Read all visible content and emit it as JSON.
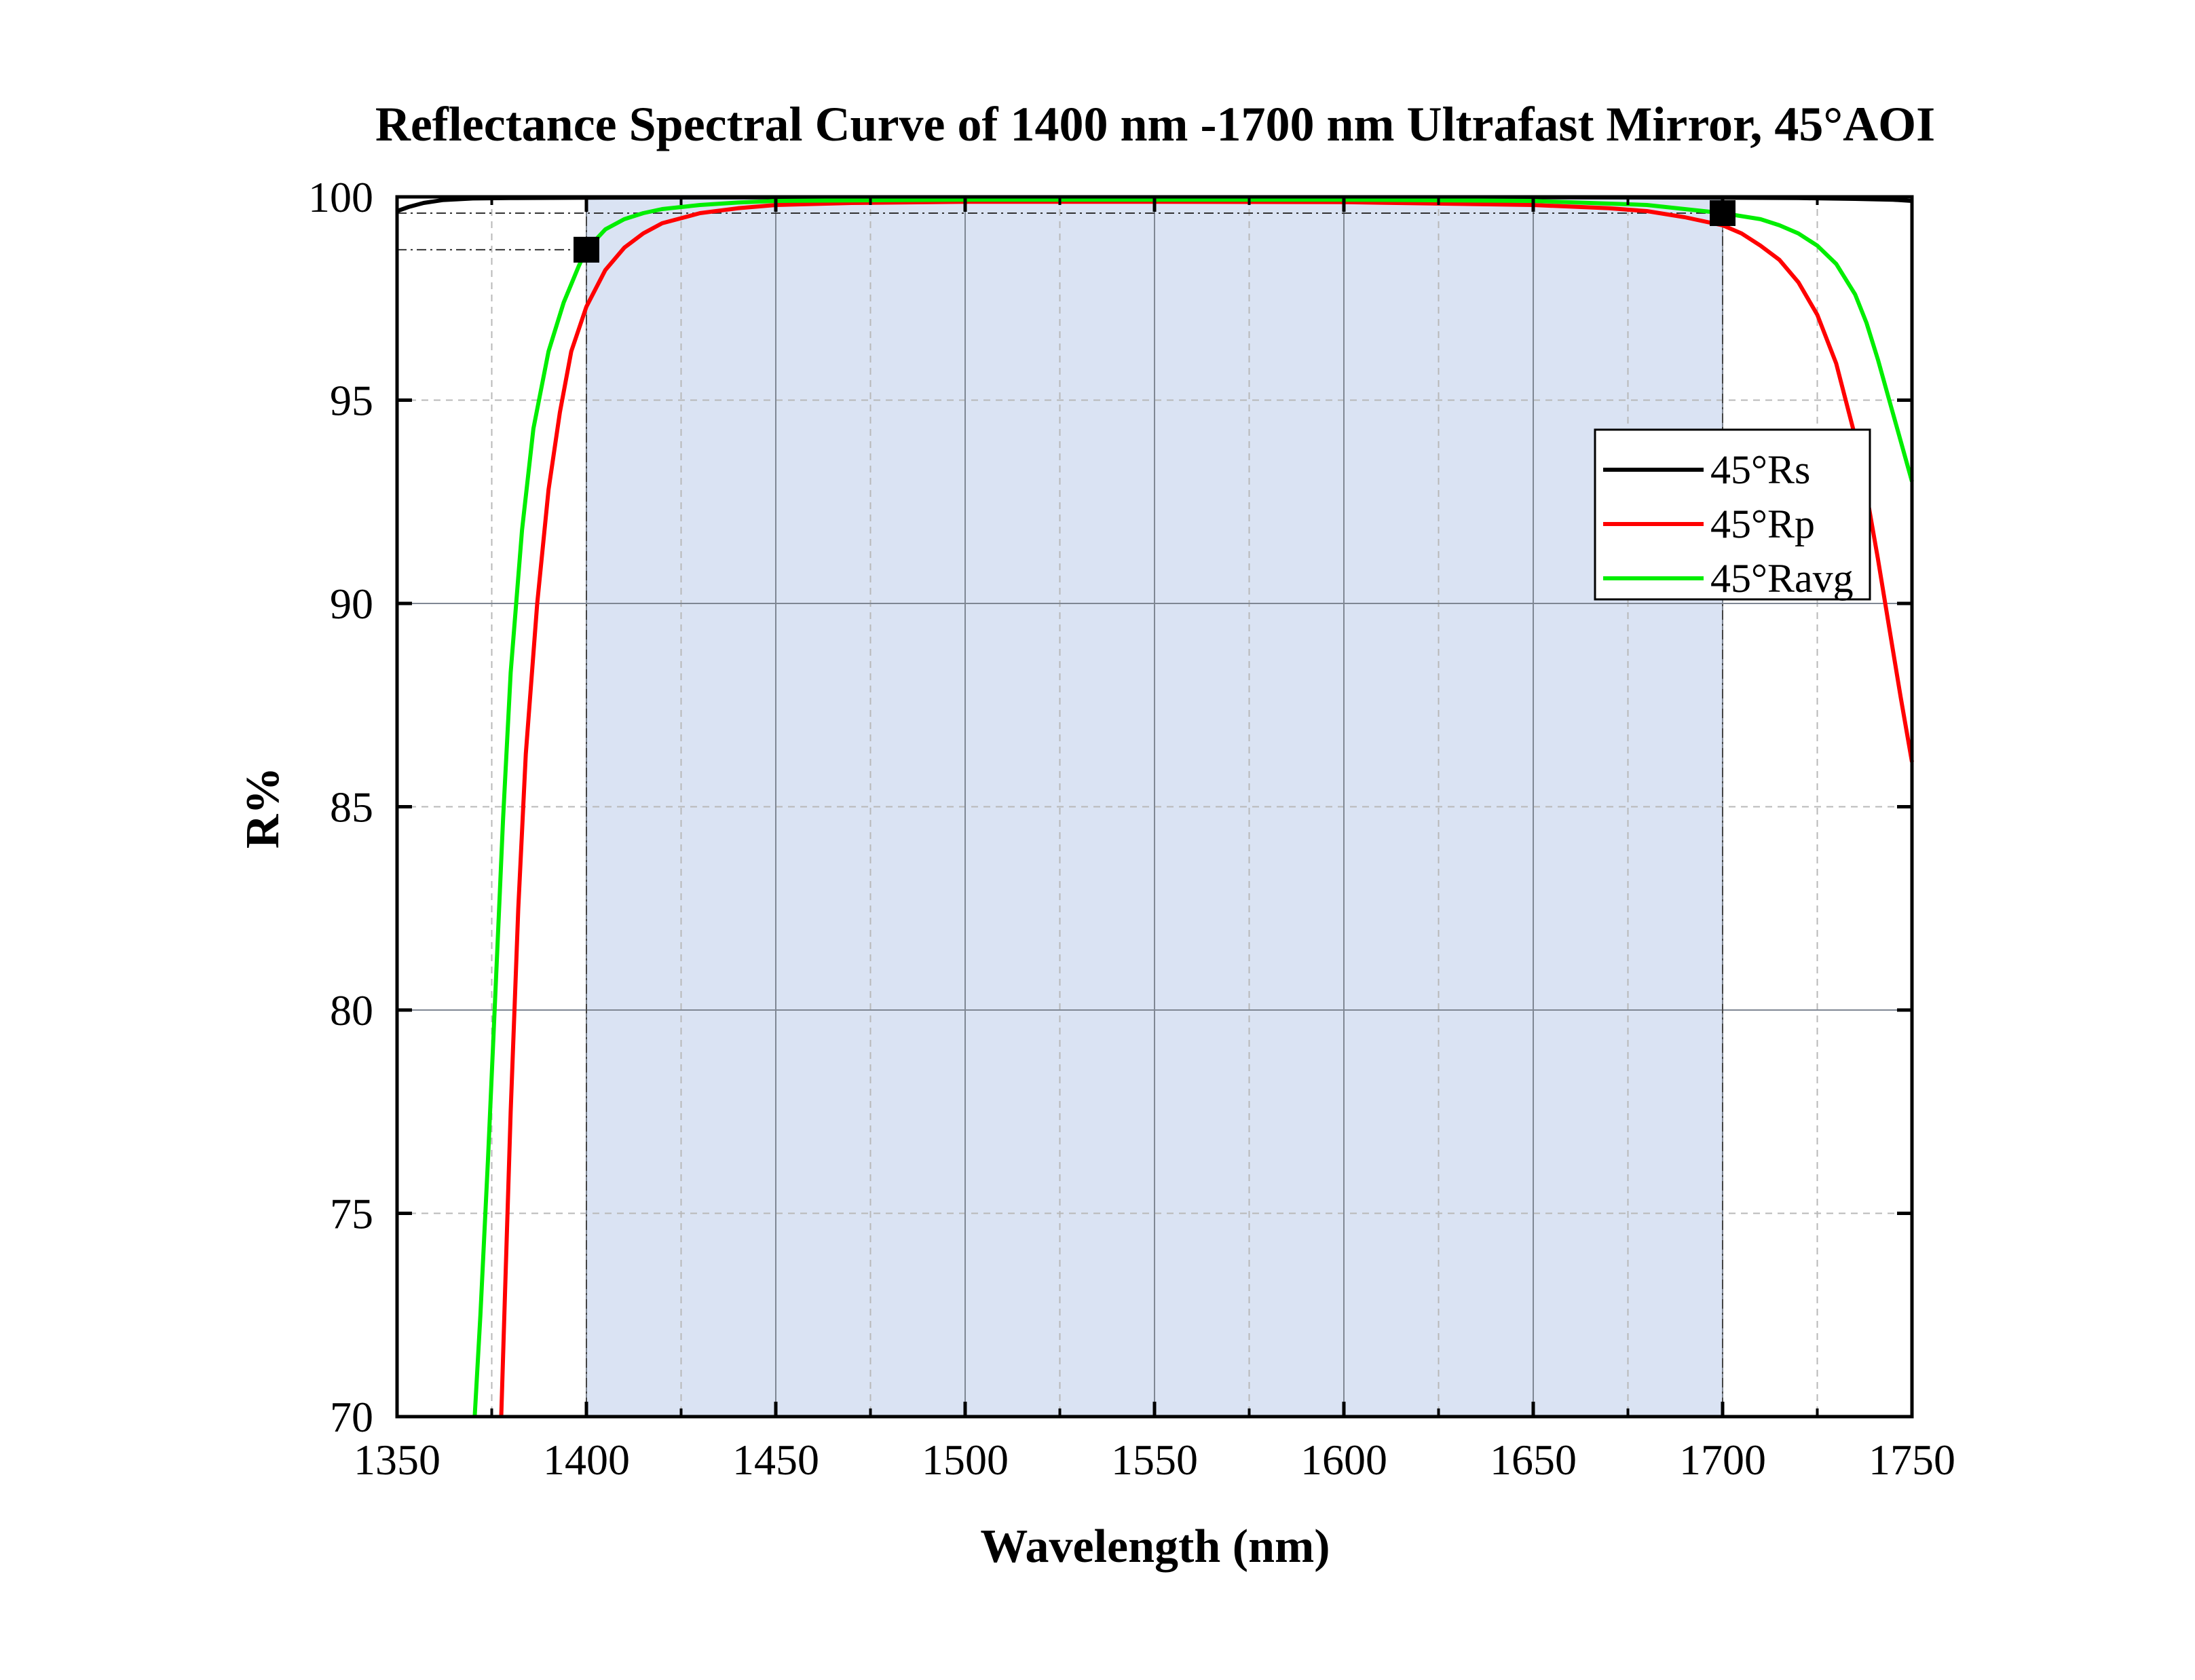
{
  "chart_data": {
    "type": "line",
    "title": "Reflectance Spectral Curve of  1400 nm -1700 nm Ultrafast Mirror,  45°AOI",
    "xlabel": "Wavelength (nm)",
    "ylabel": "R%",
    "xlim": [
      1350,
      1750
    ],
    "ylim": [
      70,
      100
    ],
    "x_ticks": [
      "1350",
      "1400",
      "1450",
      "1500",
      "1550",
      "1600",
      "1650",
      "1700",
      "1750"
    ],
    "y_ticks": [
      "70",
      "75",
      "80",
      "85",
      "90",
      "95",
      "100"
    ],
    "grid": true,
    "legend_position": "right",
    "shaded_band": {
      "x_start": 1400,
      "x_end": 1700,
      "color": "#dae3f3"
    },
    "markers": [
      {
        "x": 1400,
        "y": 98.7
      },
      {
        "x": 1700,
        "y": 99.6
      }
    ],
    "series": [
      {
        "name": "45°Rs",
        "color": "#000000",
        "x": [
          1350,
          1353,
          1357,
          1362,
          1370,
          1380,
          1400,
          1450,
          1500,
          1550,
          1600,
          1650,
          1700,
          1720,
          1735,
          1745,
          1750
        ],
        "y": [
          99.65,
          99.75,
          99.85,
          99.92,
          99.96,
          99.97,
          99.98,
          99.99,
          99.99,
          99.99,
          99.99,
          99.99,
          99.98,
          99.97,
          99.95,
          99.93,
          99.9
        ]
      },
      {
        "name": "45°Rp",
        "color": "#ff0000",
        "x": [
          1377.5,
          1378.5,
          1380,
          1382,
          1384,
          1387,
          1390,
          1393,
          1396,
          1400,
          1405,
          1410,
          1415,
          1420,
          1430,
          1440,
          1450,
          1470,
          1500,
          1550,
          1600,
          1650,
          1670,
          1680,
          1690,
          1700,
          1705,
          1710,
          1715,
          1720,
          1725,
          1730,
          1735,
          1738,
          1741,
          1744,
          1747,
          1750
        ],
        "y": [
          70,
          73,
          77.5,
          82.5,
          86.3,
          90,
          92.8,
          94.7,
          96.2,
          97.3,
          98.2,
          98.75,
          99.1,
          99.35,
          99.6,
          99.72,
          99.8,
          99.85,
          99.88,
          99.88,
          99.87,
          99.8,
          99.72,
          99.65,
          99.5,
          99.3,
          99.1,
          98.8,
          98.45,
          97.9,
          97.1,
          95.9,
          94.1,
          92.7,
          91.1,
          89.4,
          87.7,
          86.1
        ]
      },
      {
        "name": "45°Ravg",
        "color": "#00ee00",
        "x": [
          1370.5,
          1372,
          1374,
          1376,
          1378,
          1380,
          1383,
          1386,
          1390,
          1394,
          1398,
          1400,
          1405,
          1410,
          1415,
          1420,
          1430,
          1440,
          1450,
          1500,
          1550,
          1600,
          1650,
          1680,
          1700,
          1710,
          1715,
          1720,
          1725,
          1730,
          1735,
          1738,
          1741,
          1744,
          1747,
          1750
        ],
        "y": [
          70,
          72.5,
          76.3,
          80.5,
          84.7,
          88.3,
          91.8,
          94.3,
          96.2,
          97.4,
          98.3,
          98.7,
          99.2,
          99.45,
          99.6,
          99.7,
          99.8,
          99.86,
          99.9,
          99.93,
          99.93,
          99.93,
          99.9,
          99.8,
          99.6,
          99.45,
          99.3,
          99.1,
          98.8,
          98.35,
          97.6,
          96.9,
          96.0,
          95.0,
          94.0,
          93.0
        ]
      }
    ]
  }
}
